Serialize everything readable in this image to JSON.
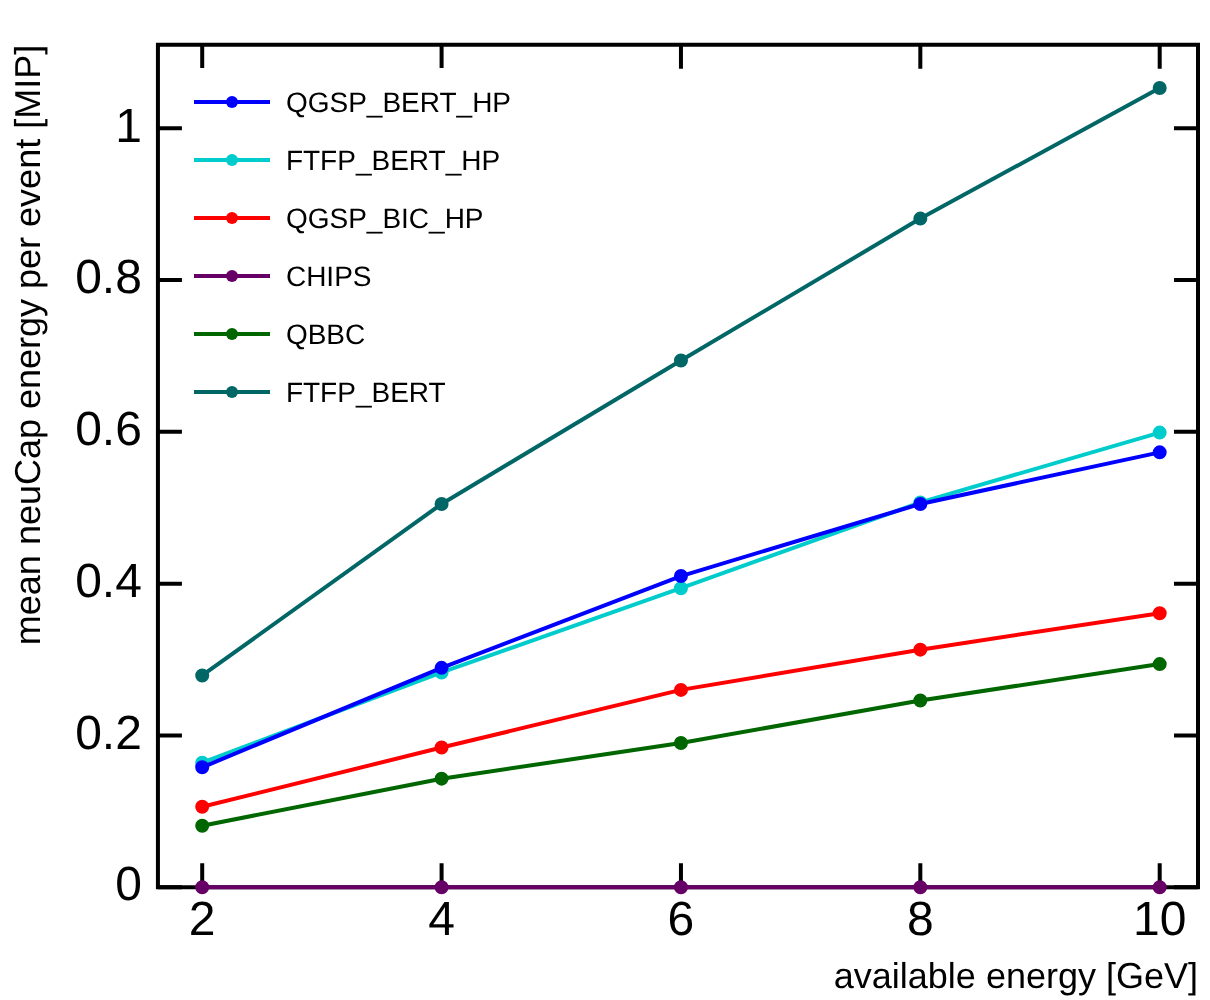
{
  "chart_data": {
    "type": "line",
    "xlabel": "available energy [GeV]",
    "ylabel": "mean neuCap energy per event [MIP]",
    "x": [
      2,
      4,
      6,
      8,
      10
    ],
    "xlim": [
      1.63,
      10.32
    ],
    "xticks": [
      2,
      4,
      6,
      8,
      10
    ],
    "ylim": [
      0,
      1.11
    ],
    "yticks": [
      0,
      0.2,
      0.4,
      0.6,
      0.8,
      1
    ],
    "grid": false,
    "legend": "top left",
    "marker": "circle",
    "line_style": "solid",
    "series": [
      {
        "name": "QGSP_BERT_HP",
        "color": "#0000ff",
        "values": [
          0.158,
          0.289,
          0.41,
          0.505,
          0.573
        ]
      },
      {
        "name": "FTFP_BERT_HP",
        "color": "#00cccc",
        "values": [
          0.164,
          0.283,
          0.394,
          0.507,
          0.599
        ]
      },
      {
        "name": "QGSP_BIC_HP",
        "color": "#ff0000",
        "values": [
          0.106,
          0.184,
          0.26,
          0.313,
          0.361
        ]
      },
      {
        "name": "CHIPS",
        "color": "#660066",
        "values": [
          0,
          0,
          0,
          0,
          0
        ]
      },
      {
        "name": "QBBC",
        "color": "#006600",
        "values": [
          0.081,
          0.143,
          0.19,
          0.246,
          0.294
        ]
      },
      {
        "name": "FTFP_BERT",
        "color": "#006666",
        "values": [
          0.279,
          0.505,
          0.694,
          0.881,
          1.053
        ]
      }
    ]
  }
}
